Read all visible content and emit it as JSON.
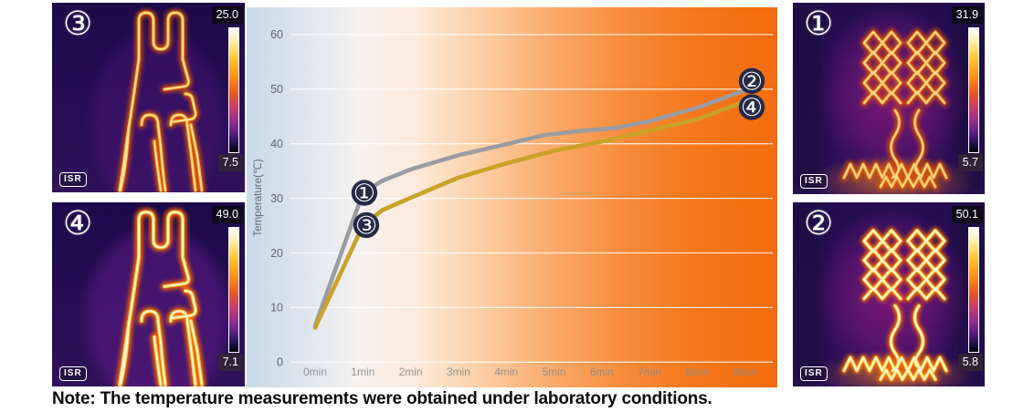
{
  "note": "Note: The temperature measurements were obtained under laboratory conditions.",
  "thermal_panels": [
    {
      "label": "③",
      "scale_max": "25.0",
      "scale_min": "7.5",
      "badge": "ISR"
    },
    {
      "label": "④",
      "scale_max": "49.0",
      "scale_min": "7.1",
      "badge": "ISR"
    },
    {
      "label": "①",
      "scale_max": "31.9",
      "scale_min": "5.7",
      "badge": "ISR"
    },
    {
      "label": "②",
      "scale_max": "50.1",
      "scale_min": "5.8",
      "badge": "ISR"
    }
  ],
  "chart_data": {
    "type": "line",
    "ylabel": "Temperature(℃)",
    "yticks": [
      0,
      10,
      20,
      30,
      40,
      50,
      60
    ],
    "x_labels": [
      "0min",
      "1min",
      "2min",
      "3min",
      "4min",
      "5min",
      "6min",
      "7min",
      "8min",
      "9min"
    ],
    "xlim": [
      0,
      9.6
    ],
    "ylim": [
      0,
      65
    ],
    "grid": true,
    "legend_position": "inline-markers",
    "series": [
      {
        "name": "line-1-to-2",
        "color": "#9b9ca2",
        "points": [
          [
            0,
            6.7
          ],
          [
            1,
            31.0
          ],
          [
            1.4,
            33.2
          ],
          [
            2,
            35.3
          ],
          [
            3,
            37.9
          ],
          [
            4,
            39.9
          ],
          [
            4.8,
            41.6
          ],
          [
            5.5,
            42.3
          ],
          [
            6.3,
            42.9
          ],
          [
            7,
            44.1
          ],
          [
            8,
            46.6
          ],
          [
            9,
            49.8
          ]
        ]
      },
      {
        "name": "line-3-to-4",
        "color": "#c9a227",
        "points": [
          [
            0,
            6.3
          ],
          [
            1,
            25.0
          ],
          [
            1.4,
            27.8
          ],
          [
            2,
            30.1
          ],
          [
            3,
            33.8
          ],
          [
            4,
            36.4
          ],
          [
            5,
            38.7
          ],
          [
            6,
            40.4
          ],
          [
            7,
            42.4
          ],
          [
            8,
            44.5
          ],
          [
            9,
            47.8
          ]
        ]
      }
    ],
    "markers": [
      {
        "label": "①",
        "t": 1.03,
        "v": 31.0
      },
      {
        "label": "③",
        "t": 1.07,
        "v": 25.1
      },
      {
        "label": "②",
        "t": 9.14,
        "v": 51.5
      },
      {
        "label": "④",
        "t": 9.14,
        "v": 46.7
      }
    ],
    "marker_color": "#252a47",
    "tick_color_y": "#5f6673",
    "tick_color_x": "#8c8c8c",
    "grid_color": "rgba(255,255,255,0.78)"
  }
}
